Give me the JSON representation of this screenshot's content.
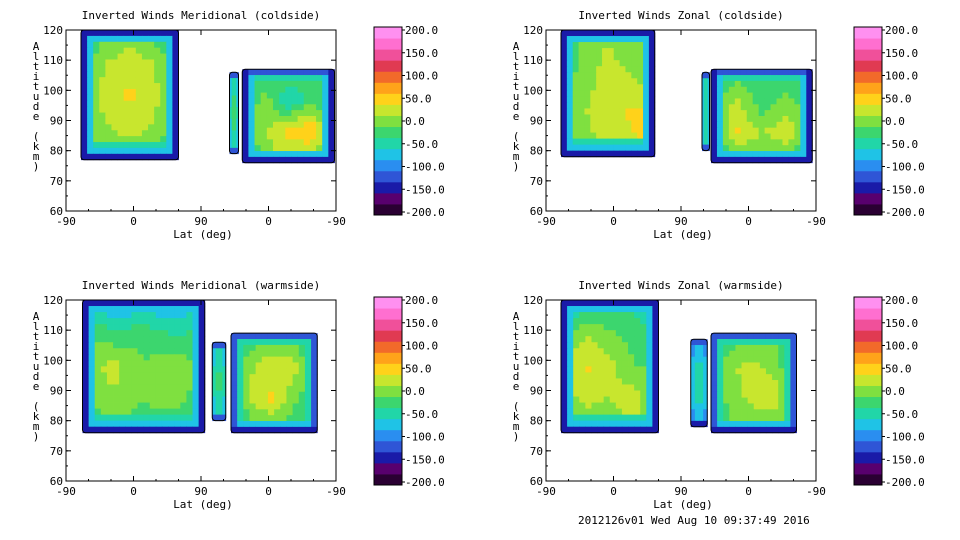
{
  "chart_data": [
    {
      "type": "heatmap",
      "title": "Inverted Winds Meridional (coldside)",
      "xlabel": "Lat (deg)",
      "ylabel": "Altitude (km)",
      "x_ticks": [
        "-90",
        "0",
        "90",
        "0",
        "-90"
      ],
      "y_ticks": [
        "60",
        "70",
        "80",
        "90",
        "100",
        "110",
        "120"
      ],
      "ylim": [
        60,
        120
      ],
      "colorbar_ticks": [
        "200.0",
        "150.0",
        "100.0",
        "50.0",
        "0.0",
        "-50.0",
        "-100.0",
        "-150.0",
        "-200.0"
      ],
      "colorbar_range": [
        -200,
        200
      ],
      "regions": [
        {
          "x0": -70,
          "x1": 60,
          "y0": 77,
          "y1": 120,
          "values": [
            [
              -60,
              -20,
              -10,
              -30,
              -40
            ],
            [
              -20,
              10,
              30,
              10,
              -20
            ],
            [
              0,
              20,
              40,
              20,
              -10
            ],
            [
              -10,
              10,
              20,
              10,
              -30
            ],
            [
              -30,
              -10,
              0,
              -20,
              -40
            ]
          ]
        },
        {
          "x0": 128,
          "x1": 140,
          "y0": 79,
          "y1": 106,
          "values": [
            [
              -90,
              -40,
              -90
            ],
            [
              -70,
              -10,
              -70
            ],
            [
              -90,
              -40,
              -90
            ]
          ]
        },
        {
          "x0": 145,
          "x1": 268,
          "y0": 76,
          "y1": 107,
          "values": [
            [
              -60,
              -30,
              -10,
              -30,
              -50
            ],
            [
              -40,
              0,
              -60,
              -20,
              -40
            ],
            [
              -30,
              10,
              40,
              60,
              -20
            ],
            [
              -50,
              -10,
              20,
              -10,
              -50
            ]
          ]
        }
      ]
    },
    {
      "type": "heatmap",
      "title": "Inverted Winds Zonal (coldside)",
      "xlabel": "Lat (deg)",
      "ylabel": "Altitude (km)",
      "x_ticks": [
        "-90",
        "0",
        "90",
        "0",
        "-90"
      ],
      "y_ticks": [
        "60",
        "70",
        "80",
        "90",
        "100",
        "110",
        "120"
      ],
      "ylim": [
        60,
        120
      ],
      "colorbar_ticks": [
        "200.0",
        "150.0",
        "100.0",
        "50.0",
        "0.0",
        "-50.0",
        "-100.0",
        "-150.0",
        "-200.0"
      ],
      "colorbar_range": [
        -200,
        200
      ],
      "regions": [
        {
          "x0": -70,
          "x1": 55,
          "y0": 78,
          "y1": 120,
          "values": [
            [
              -50,
              -10,
              10,
              -10,
              -30
            ],
            [
              -30,
              0,
              20,
              10,
              -10
            ],
            [
              -20,
              10,
              30,
              40,
              50
            ],
            [
              -20,
              0,
              10,
              20,
              60
            ]
          ]
        },
        {
          "x0": 118,
          "x1": 128,
          "y0": 80,
          "y1": 106,
          "values": [
            [
              -90,
              -50,
              -90
            ],
            [
              -80,
              -30,
              -80
            ],
            [
              -90,
              -50,
              -90
            ]
          ]
        },
        {
          "x0": 130,
          "x1": 265,
          "y0": 76,
          "y1": 107,
          "values": [
            [
              -70,
              -30,
              -20,
              -40,
              -60
            ],
            [
              -40,
              20,
              -30,
              0,
              -40
            ],
            [
              -30,
              40,
              10,
              30,
              -20
            ],
            [
              -60,
              -20,
              -10,
              -20,
              -60
            ]
          ]
        }
      ]
    },
    {
      "type": "heatmap",
      "title": "Inverted Winds Meridional (warmside)",
      "xlabel": "Lat (deg)",
      "ylabel": "Altitude (km)",
      "x_ticks": [
        "-90",
        "0",
        "90",
        "0",
        "-90"
      ],
      "y_ticks": [
        "60",
        "70",
        "80",
        "90",
        "100",
        "110",
        "120"
      ],
      "ylim": [
        60,
        120
      ],
      "colorbar_ticks": [
        "200.0",
        "150.0",
        "100.0",
        "50.0",
        "0.0",
        "-50.0",
        "-100.0",
        "-150.0",
        "-200.0"
      ],
      "colorbar_range": [
        -200,
        200
      ],
      "regions": [
        {
          "x0": -68,
          "x1": 95,
          "y0": 76,
          "y1": 120,
          "values": [
            [
              -50,
              -100,
              -80,
              -90,
              -60
            ],
            [
              -10,
              -30,
              -20,
              -40,
              -30
            ],
            [
              0,
              20,
              -10,
              10,
              -20
            ],
            [
              -20,
              10,
              -10,
              0,
              -30
            ],
            [
              -40,
              -20,
              -30,
              -40,
              -50
            ]
          ]
        },
        {
          "x0": 105,
          "x1": 123,
          "y0": 80,
          "y1": 106,
          "values": [
            [
              -80,
              -40,
              -80
            ],
            [
              -60,
              -20,
              -60
            ],
            [
              -80,
              -40,
              -80
            ]
          ]
        },
        {
          "x0": 130,
          "x1": 245,
          "y0": 76,
          "y1": 109,
          "values": [
            [
              -60,
              -30,
              -20,
              -30,
              -50
            ],
            [
              -40,
              10,
              30,
              20,
              -40
            ],
            [
              -40,
              20,
              40,
              -10,
              -30
            ],
            [
              -60,
              -30,
              -20,
              -40,
              -60
            ]
          ]
        }
      ]
    },
    {
      "type": "heatmap",
      "title": "Inverted Winds Zonal (warmside)",
      "xlabel": "Lat (deg)",
      "ylabel": "Altitude (km)",
      "x_ticks": [
        "-90",
        "0",
        "90",
        "0",
        "-90"
      ],
      "y_ticks": [
        "60",
        "70",
        "80",
        "90",
        "100",
        "110",
        "120"
      ],
      "ylim": [
        60,
        120
      ],
      "colorbar_ticks": [
        "200.0",
        "150.0",
        "100.0",
        "50.0",
        "0.0",
        "-50.0",
        "-100.0",
        "-150.0",
        "-200.0"
      ],
      "colorbar_range": [
        -200,
        200
      ],
      "regions": [
        {
          "x0": -70,
          "x1": 60,
          "y0": 76,
          "y1": 120,
          "values": [
            [
              -90,
              -60,
              -40,
              -50,
              -80
            ],
            [
              -20,
              10,
              -10,
              -20,
              -40
            ],
            [
              10,
              40,
              20,
              -10,
              -20
            ],
            [
              -10,
              20,
              10,
              30,
              -20
            ],
            [
              -40,
              -20,
              -10,
              20,
              -40
            ]
          ]
        },
        {
          "x0": 103,
          "x1": 125,
          "y0": 78,
          "y1": 107,
          "values": [
            [
              -100,
              -60,
              -100
            ],
            [
              -80,
              -40,
              -80
            ],
            [
              -100,
              -60,
              -100
            ]
          ]
        },
        {
          "x0": 130,
          "x1": 244,
          "y0": 76,
          "y1": 109,
          "values": [
            [
              -60,
              -30,
              -20,
              -20,
              -60
            ],
            [
              -40,
              10,
              20,
              0,
              -40
            ],
            [
              -30,
              0,
              20,
              30,
              -30
            ],
            [
              -50,
              -20,
              -10,
              -20,
              -50
            ]
          ]
        }
      ]
    }
  ],
  "footer": "2012126v01 Wed Aug 10 09:37:49 2016",
  "palette": [
    "#2a0033",
    "#58006e",
    "#1a1aa8",
    "#2f55d6",
    "#2a8ef0",
    "#1fc3e6",
    "#21d6a8",
    "#3cd66e",
    "#7fe040",
    "#c8e62e",
    "#ffd21a",
    "#ffa31a",
    "#f26a2a",
    "#e03a52",
    "#f0509a",
    "#ff6fd0",
    "#ff90f0"
  ]
}
